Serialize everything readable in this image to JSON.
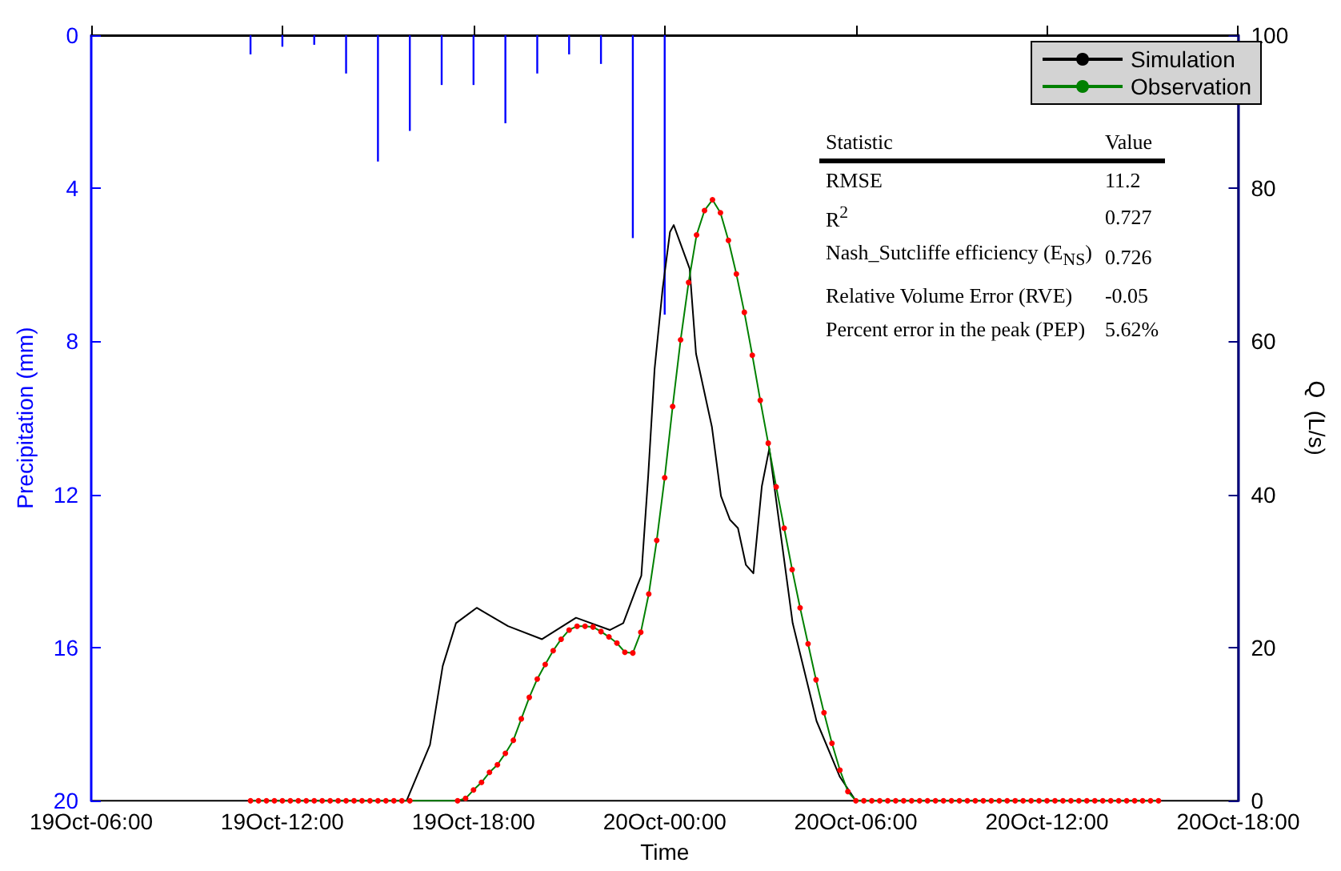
{
  "chart_data": {
    "type": "line",
    "xlabel": "Time",
    "ylabel": "Precipitation (mm)",
    "y2label": "Q  (L/s)",
    "xlim": [
      "--10-19T06:00",
      "--10-20T18:00"
    ],
    "xticks": [
      {
        "value": "--10-19T06:00",
        "label": "19Oct-06:00"
      },
      {
        "value": "--10-19T12:00",
        "label": "19Oct-12:00"
      },
      {
        "value": "--10-19T18:00",
        "label": "19Oct-18:00"
      },
      {
        "value": "--10-20T00:00",
        "label": "20Oct-00:00"
      },
      {
        "value": "--10-20T06:00",
        "label": "20Oct-06:00"
      },
      {
        "value": "--10-20T12:00",
        "label": "20Oct-12:00"
      },
      {
        "value": "--10-20T18:00",
        "label": "20Oct-18:00"
      }
    ],
    "ylim": [
      20,
      0
    ],
    "yticks": [
      0,
      4,
      8,
      12,
      16,
      20
    ],
    "y2lim": [
      0,
      100
    ],
    "y2ticks": [
      0,
      20,
      40,
      60,
      80,
      100
    ],
    "series": [
      {
        "type": "bar",
        "color": "#0000ff",
        "x": [
          "--10-19T11:00",
          "--10-19T12:00",
          "--10-19T13:00",
          "--10-19T14:00",
          "--10-19T15:00",
          "--10-19T16:00",
          "--10-19T17:00",
          "--10-19T18:00",
          "--10-19T19:00",
          "--10-19T20:00",
          "--10-19T21:00",
          "--10-19T22:00",
          "--10-19T23:00",
          "--10-20T00:00"
        ],
        "values": [
          0.5,
          0.3,
          0.25,
          1.0,
          3.3,
          2.5,
          1.3,
          1.3,
          2.3,
          1.0,
          0.5,
          0.75,
          5.3,
          7.3
        ]
      },
      {
        "name": "Simulation",
        "axis": "y2",
        "color": "#000000",
        "marker": "none",
        "x": [
          "--10-19T11:00",
          "--10-19T15:54",
          "--10-19T16:38",
          "--10-19T17:02",
          "--10-19T17:27",
          "--10-19T18:06",
          "--10-19T19:05",
          "--10-19T20:09",
          "--10-19T21:13",
          "--10-19T22:17",
          "--10-19T22:42",
          "--10-19T23:08",
          "--10-19T23:16",
          "--10-19T23:29",
          "--10-19T23:41",
          "--10-19T23:56",
          "--10-20T00:10",
          "--10-20T00:17",
          "--10-20T00:47",
          "--10-20T00:59",
          "--10-20T01:29",
          "--10-20T01:46",
          "--10-20T02:03",
          "--10-20T02:18",
          "--10-20T02:33",
          "--10-20T02:47",
          "--10-20T03:03",
          "--10-20T03:17",
          "--10-20T03:37",
          "--10-20T04:01",
          "--10-20T04:46",
          "--10-20T05:30",
          "--10-20T06:00",
          "--10-20T15:30"
        ],
        "values": [
          0,
          0,
          7.3,
          17.6,
          23.2,
          25.2,
          22.8,
          21.1,
          23.9,
          22.3,
          23.2,
          28,
          29.4,
          42.5,
          56.4,
          66.8,
          74.3,
          75.2,
          69.5,
          58.4,
          48.8,
          39.8,
          36.7,
          35.6,
          30.8,
          29.7,
          41.1,
          46,
          35.6,
          23.2,
          10.4,
          3.1,
          0,
          0
        ]
      },
      {
        "name": "Observation",
        "axis": "y2",
        "color": "#008000",
        "marker": "circle",
        "x": [
          "--10-19T11:00",
          "--10-19T11:15",
          "--10-19T11:30",
          "--10-19T11:45",
          "--10-19T12:00",
          "--10-19T12:15",
          "--10-19T12:30",
          "--10-19T12:45",
          "--10-19T13:00",
          "--10-19T13:15",
          "--10-19T13:30",
          "--10-19T13:45",
          "--10-19T14:00",
          "--10-19T14:15",
          "--10-19T14:30",
          "--10-19T14:45",
          "--10-19T15:00",
          "--10-19T15:15",
          "--10-19T15:30",
          "--10-19T15:45",
          "--10-19T16:00",
          "--10-19T17:30",
          "--10-19T17:45",
          "--10-19T18:00",
          "--10-19T18:15",
          "--10-19T18:30",
          "--10-19T18:45",
          "--10-19T19:00",
          "--10-19T19:15",
          "--10-19T19:30",
          "--10-19T19:45",
          "--10-19T20:00",
          "--10-19T20:15",
          "--10-19T20:30",
          "--10-19T20:45",
          "--10-19T21:00",
          "--10-19T21:15",
          "--10-19T21:30",
          "--10-19T21:45",
          "--10-19T22:00",
          "--10-19T22:15",
          "--10-19T22:30",
          "--10-19T22:45",
          "--10-19T23:00",
          "--10-19T23:15",
          "--10-19T23:30",
          "--10-19T23:45",
          "--10-20T00:00",
          "--10-20T00:15",
          "--10-20T00:30",
          "--10-20T00:45",
          "--10-20T01:00",
          "--10-20T01:15",
          "--10-20T01:30",
          "--10-20T01:45",
          "--10-20T02:00",
          "--10-20T02:15",
          "--10-20T02:30",
          "--10-20T02:45",
          "--10-20T03:00",
          "--10-20T03:15",
          "--10-20T03:30",
          "--10-20T03:45",
          "--10-20T04:00",
          "--10-20T04:15",
          "--10-20T04:30",
          "--10-20T04:45",
          "--10-20T05:00",
          "--10-20T05:15",
          "--10-20T05:30",
          "--10-20T05:45",
          "--10-20T06:00",
          "--10-20T06:15",
          "--10-20T06:30",
          "--10-20T06:45",
          "--10-20T07:00",
          "--10-20T07:15",
          "--10-20T07:30",
          "--10-20T07:45",
          "--10-20T08:00",
          "--10-20T08:15",
          "--10-20T08:30",
          "--10-20T08:45",
          "--10-20T09:00",
          "--10-20T09:15",
          "--10-20T09:30",
          "--10-20T09:45",
          "--10-20T10:00",
          "--10-20T10:15",
          "--10-20T10:30",
          "--10-20T10:45",
          "--10-20T11:00",
          "--10-20T11:15",
          "--10-20T11:30",
          "--10-20T11:45",
          "--10-20T12:00",
          "--10-20T12:15",
          "--10-20T12:30",
          "--10-20T12:45",
          "--10-20T13:00",
          "--10-20T13:15",
          "--10-20T13:30",
          "--10-20T13:45",
          "--10-20T14:00",
          "--10-20T14:15",
          "--10-20T14:30",
          "--10-20T14:45",
          "--10-20T15:00",
          "--10-20T15:15",
          "--10-20T15:30"
        ],
        "values": [
          0,
          0,
          0,
          0,
          0,
          0,
          0,
          0,
          0,
          0,
          0,
          0,
          0,
          0,
          0,
          0,
          0,
          0,
          0,
          0,
          0,
          0,
          0.3,
          1.4,
          2.4,
          3.7,
          4.7,
          6.2,
          7.9,
          10.7,
          13.5,
          15.9,
          17.8,
          19.6,
          21.1,
          22.3,
          22.8,
          22.8,
          22.7,
          22.1,
          21.4,
          20.6,
          19.4,
          19.3,
          22,
          27,
          34,
          42.2,
          51.5,
          60.2,
          67.7,
          73.9,
          77.1,
          78.5,
          76.8,
          73.2,
          68.8,
          63.8,
          58.2,
          52.3,
          46.7,
          41,
          35.6,
          30.2,
          25.2,
          20.5,
          15.8,
          11.5,
          7.5,
          4,
          1.2,
          0,
          0,
          0,
          0,
          0,
          0,
          0,
          0,
          0,
          0,
          0,
          0,
          0,
          0,
          0,
          0,
          0,
          0,
          0,
          0,
          0,
          0,
          0,
          0,
          0,
          0,
          0,
          0,
          0,
          0,
          0,
          0,
          0,
          0,
          0,
          0,
          0,
          0,
          0
        ],
        "colors": [
          "#ff0000",
          "#ff0000",
          "#ff0000",
          "#ff0000",
          "#ff0000",
          "#ff0000",
          "#ff0000",
          "#ff0000",
          "#ff0000",
          "#ff0000",
          "#ff0000",
          "#ff0000",
          "#ff0000",
          "#ff0000",
          "#ff0000",
          "#ff0000",
          "#ff0000",
          "#ff0000",
          "#ff0000",
          "#ff0000",
          "#ff0000",
          "#ff0000",
          "#ff0000",
          "#ff0000",
          "#ff0000",
          "#ff0000",
          "#ff0000",
          "#ff0000",
          "#ff0000",
          "#ff0000",
          "#ff0000",
          "#ff0000",
          "#ff0000",
          "#ff0000",
          "#ff0000",
          "#ff0000",
          "#ff0000",
          "#ff0000",
          "#ff0000",
          "#ff0000",
          "#ff0000",
          "#ff0000",
          "#ff0000",
          "#ff0000",
          "#ff0000",
          "#ff0000",
          "#ff0000",
          "#ff0000",
          "#ff0000",
          "#ff0000",
          "#ff0000",
          "#ff0000",
          "#ff0000",
          "#ff0000",
          "#ff0000",
          "#ff0000",
          "#ff0000",
          "#ff0000",
          "#ff0000",
          "#ff0000",
          "#ff0000",
          "#ff0000",
          "#ff0000",
          "#ff0000",
          "#ff0000",
          "#ff0000",
          "#ff0000",
          "#ff0000",
          "#ff0000",
          "#ff0000",
          "#ff0000",
          "#ff0000",
          "#ff0000",
          "#ff0000",
          "#ff0000",
          "#ff0000",
          "#ff0000",
          "#ff0000",
          "#ff0000",
          "#ff0000",
          "#ff0000",
          "#ff0000",
          "#ff0000",
          "#ff0000",
          "#ff0000",
          "#ff0000",
          "#ff0000",
          "#ff0000",
          "#ff0000",
          "#ff0000",
          "#ff0000",
          "#ff0000",
          "#ff0000",
          "#ff0000",
          "#ff0000",
          "#ff0000",
          "#ff0000",
          "#ff0000",
          "#ff0000",
          "#ff0000",
          "#ff0000",
          "#ff0000",
          "#ff0000",
          "#ff0000",
          "#ff0000",
          "#ff0000",
          "#ff0000",
          "#ff0000",
          "#ff0000",
          "#ff0000"
        ]
      }
    ],
    "annotations": [
      "Statistic",
      "Value",
      "RMSE",
      "11.2",
      "R$^{2}$",
      "0.727",
      "Nash_Sutcliffe efficiency (E$_{NS}$)",
      "0.726",
      "Relative Volume Error (RVE)",
      "-0.05",
      "Percent error in the peak (PEP)",
      "5.62%"
    ],
    "legend": "top right",
    "grid": false,
    "line_style": "solid"
  }
}
